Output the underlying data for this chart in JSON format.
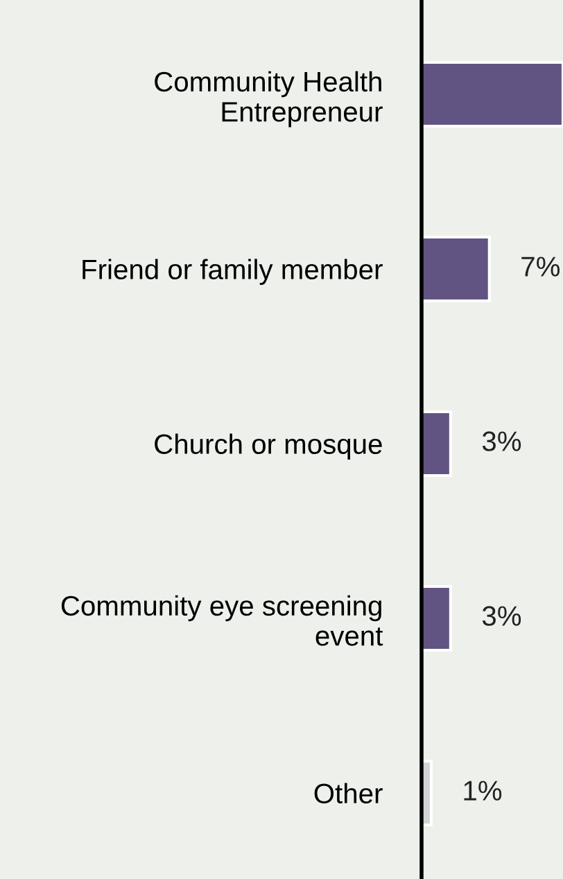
{
  "chart_data": {
    "type": "bar",
    "orientation": "horizontal",
    "categories": [
      "Community Health\nEntrepreneur",
      "Friend or family member",
      "Church or mosque",
      "Community eye screening\nevent",
      "Other"
    ],
    "values": [
      14.6,
      7,
      3,
      3,
      1
    ],
    "colors": [
      "#625482",
      "#625482",
      "#625482",
      "#625482",
      "#d3d3d6"
    ],
    "value_labels": [
      null,
      "7%",
      "3%",
      "3%",
      "1%"
    ],
    "xlim": [
      0,
      14.6
    ],
    "tick_labels": "y",
    "grid": false,
    "legend": false
  }
}
